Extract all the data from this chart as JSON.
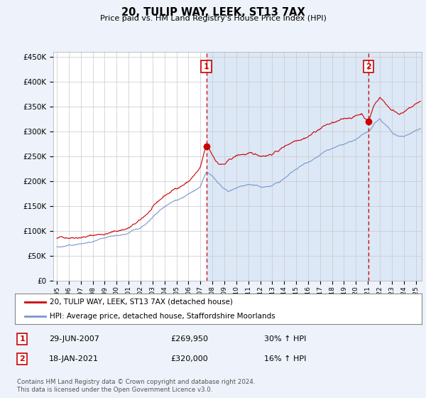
{
  "title": "20, TULIP WAY, LEEK, ST13 7AX",
  "subtitle": "Price paid vs. HM Land Registry's House Price Index (HPI)",
  "ylabel_ticks": [
    "£0",
    "£50K",
    "£100K",
    "£150K",
    "£200K",
    "£250K",
    "£300K",
    "£350K",
    "£400K",
    "£450K"
  ],
  "ylabel_values": [
    0,
    50000,
    100000,
    150000,
    200000,
    250000,
    300000,
    350000,
    400000,
    450000
  ],
  "ylim": [
    0,
    460000
  ],
  "xlim_start": 1994.7,
  "xlim_end": 2025.5,
  "red_line_label": "20, TULIP WAY, LEEK, ST13 7AX (detached house)",
  "blue_line_label": "HPI: Average price, detached house, Staffordshire Moorlands",
  "transaction1_date": "29-JUN-2007",
  "transaction1_price": "£269,950",
  "transaction1_hpi": "30% ↑ HPI",
  "transaction2_date": "18-JAN-2021",
  "transaction2_price": "£320,000",
  "transaction2_hpi": "16% ↑ HPI",
  "footer": "Contains HM Land Registry data © Crown copyright and database right 2024.\nThis data is licensed under the Open Government Licence v3.0.",
  "red_color": "#cc0000",
  "blue_color": "#7799cc",
  "shade_color": "#dce8f5",
  "background_color": "#eef2fa",
  "plot_bg_color": "#ffffff",
  "grid_color": "#c8c8d0",
  "vline_color": "#cc0000",
  "transaction1_x": 2007.5,
  "transaction2_x": 2021.05
}
